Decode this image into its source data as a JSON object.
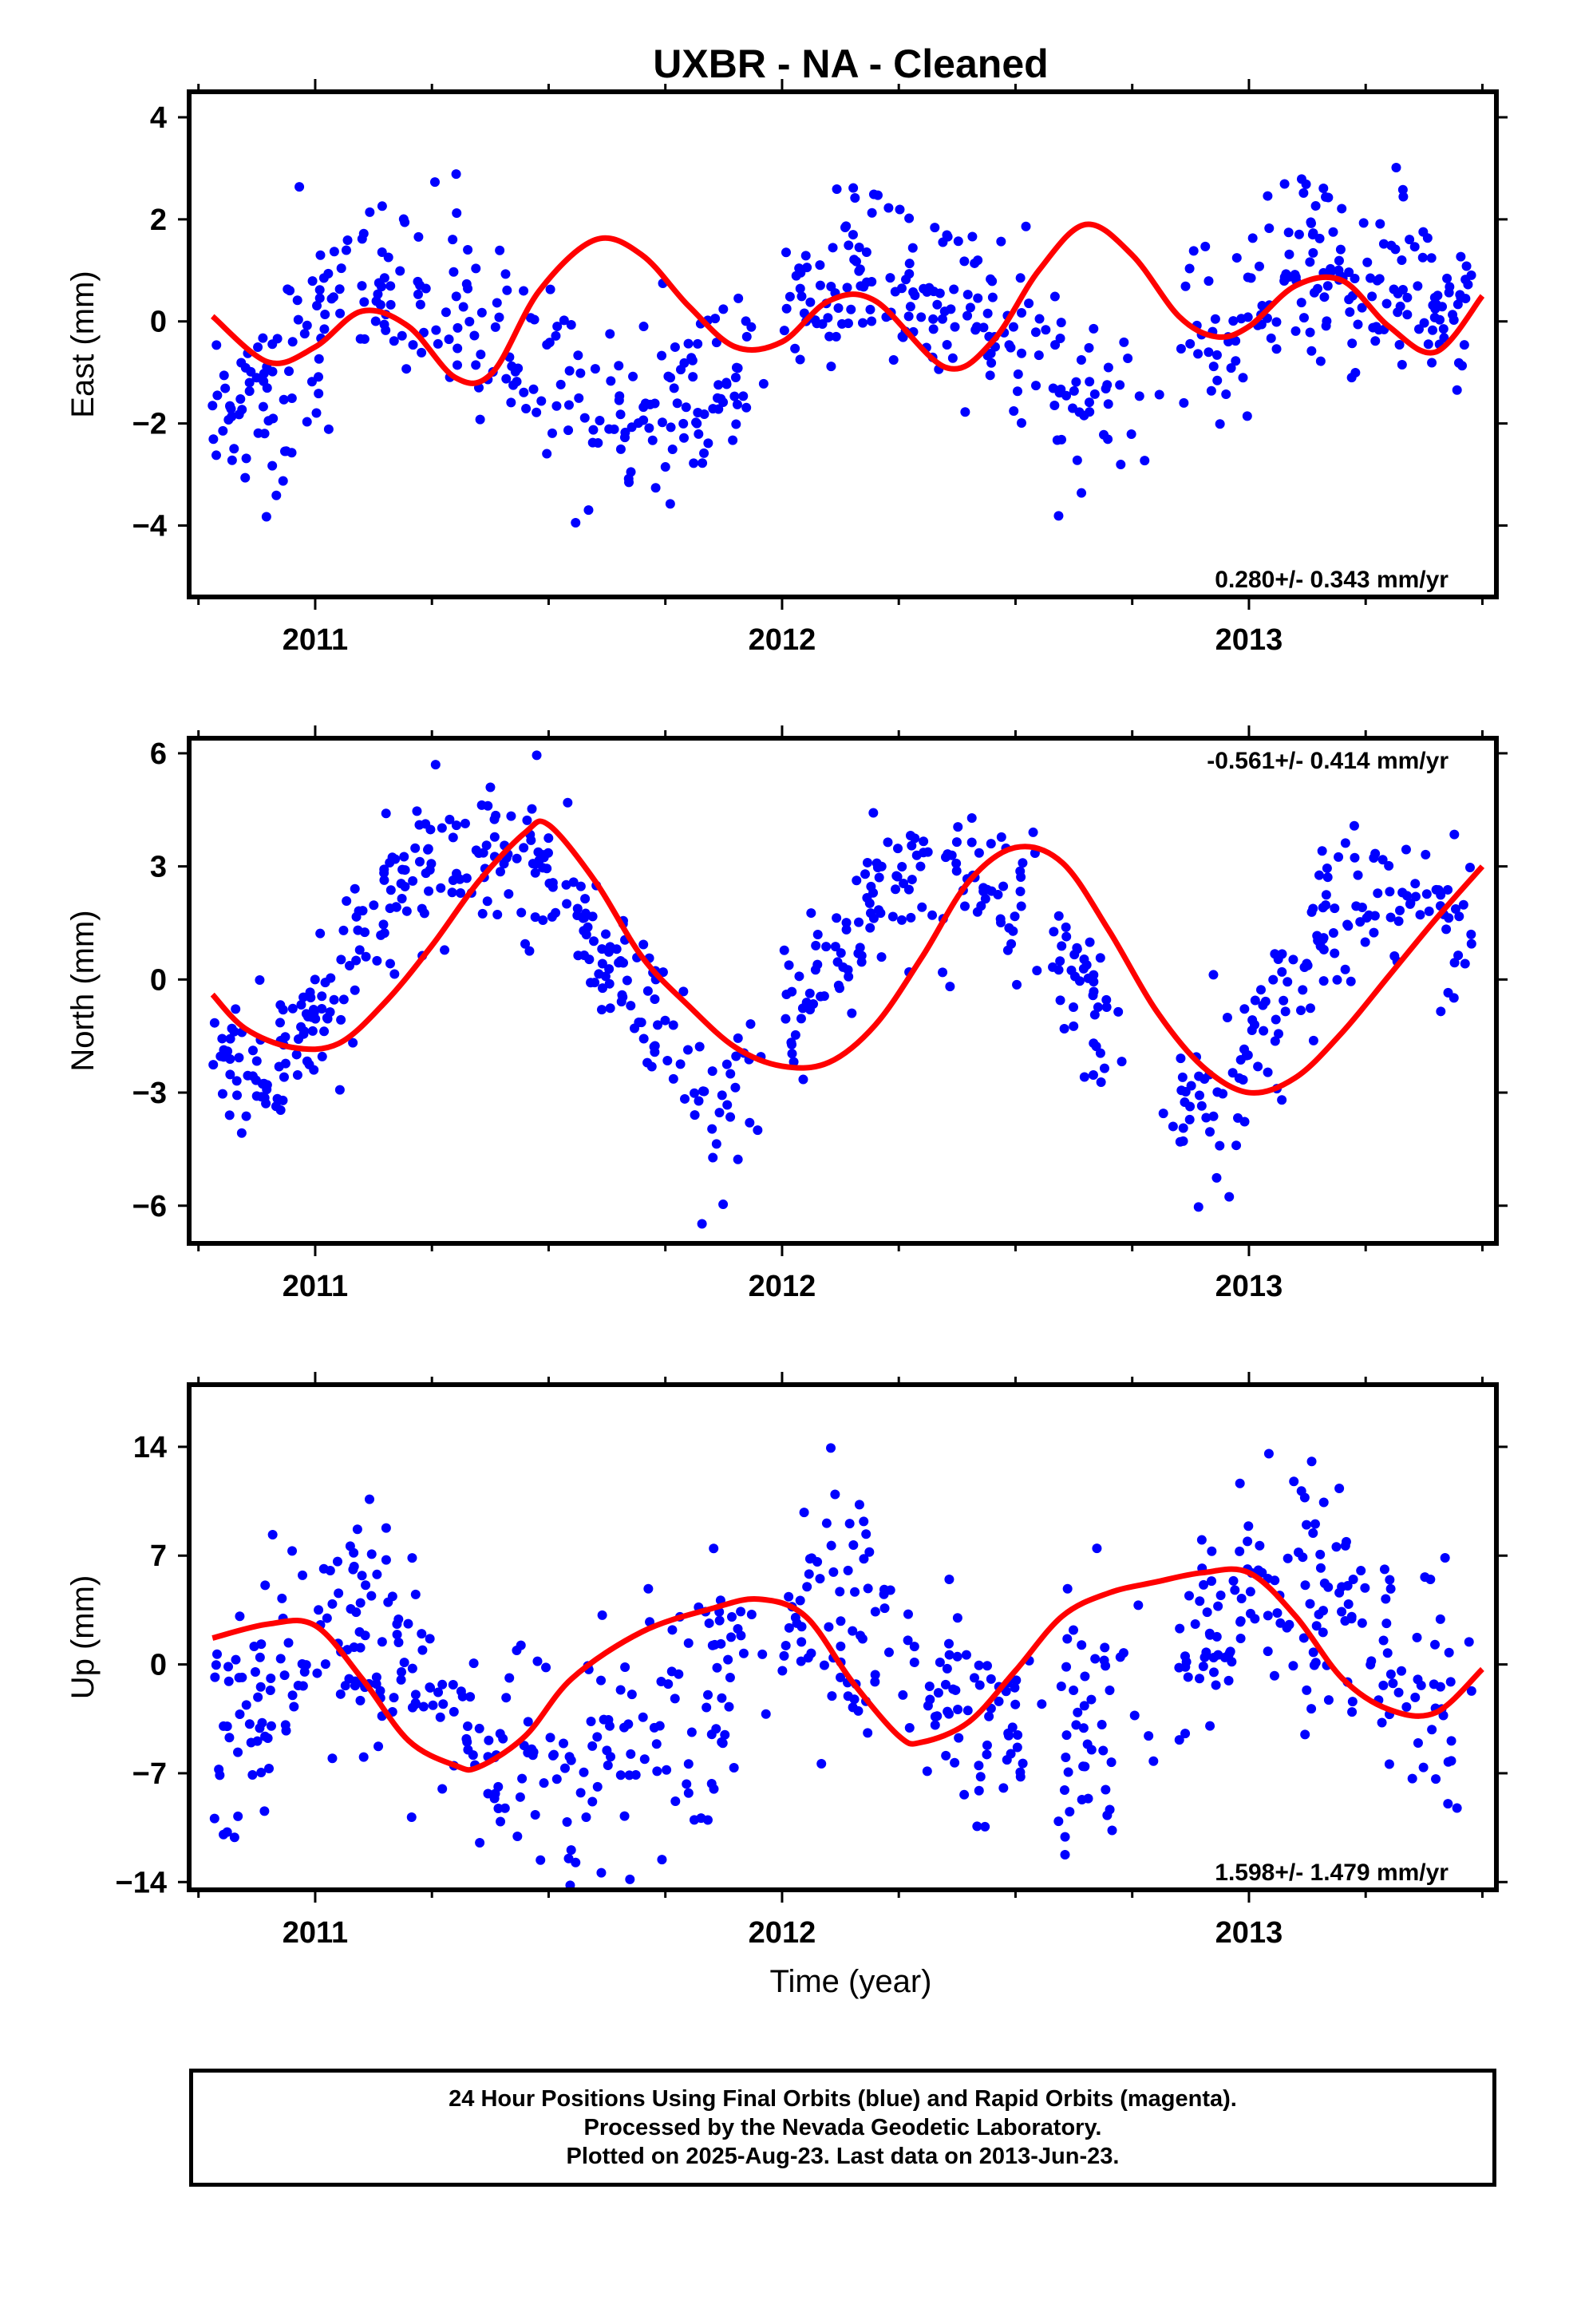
{
  "chart_data": [
    {
      "type": "scatter",
      "title": "UXBR  - NA - Cleaned",
      "ylabel": "East (mm)",
      "xlabel": "",
      "xlim": [
        2010.73,
        2013.53
      ],
      "ylim": [
        -5.4,
        4.5
      ],
      "yticks": [
        4,
        2,
        0,
        -2,
        -4
      ],
      "ytick_labels": [
        "4",
        "2",
        "0",
        "−2",
        "−4"
      ],
      "xticks": [
        2011,
        2012,
        2013
      ],
      "xtick_labels": [
        "2011",
        "2012",
        "2013"
      ],
      "rate_text": "0.280+/- 0.343 mm/yr",
      "rate_position": "bottom-right",
      "series": [
        {
          "color": "#0000ff",
          "marker": "dot",
          "mean_model": {
            "offset": -0.35,
            "rate": 0.28,
            "t0": 2012.13,
            "components": [
              [
                1.3,
                1.0,
                1.3
              ],
              [
                0.05,
                2.0,
                0.8
              ],
              [
                0.25,
                3.0,
                1.6
              ]
            ]
          },
          "noise": 0.95,
          "samples": 700,
          "seed": 11
        },
        {
          "color": "#ff0000",
          "type": "line",
          "x": [
            2010.78,
            2010.9,
            2011.0,
            2011.1,
            2011.2,
            2011.3,
            2011.38,
            2011.48,
            2011.6,
            2011.7,
            2011.8,
            2011.9,
            2012.0,
            2012.1,
            2012.2,
            2012.35,
            2012.45,
            2012.55,
            2012.65,
            2012.75,
            2012.85,
            2012.93,
            2013.0,
            2013.1,
            2013.2,
            2013.3,
            2013.4,
            2013.5
          ],
          "values": [
            0.1,
            -0.8,
            -0.5,
            0.2,
            -0.1,
            -1.1,
            -1.0,
            0.6,
            1.6,
            1.3,
            0.3,
            -0.5,
            -0.4,
            0.4,
            0.4,
            -0.9,
            -0.4,
            1.0,
            1.9,
            1.3,
            0.1,
            -0.3,
            -0.1,
            0.7,
            0.8,
            -0.1,
            -0.6,
            0.5
          ]
        }
      ]
    },
    {
      "type": "scatter",
      "ylabel": "North (mm)",
      "xlabel": "",
      "xlim": [
        2010.73,
        2013.53
      ],
      "ylim": [
        -7.0,
        6.4
      ],
      "yticks": [
        6,
        3,
        0,
        -3,
        -6
      ],
      "ytick_labels": [
        "6",
        "3",
        "0",
        "−3",
        "−6"
      ],
      "xticks": [
        2011,
        2012,
        2013
      ],
      "xtick_labels": [
        "2011",
        "2012",
        "2013"
      ],
      "rate_text": "-0.561+/- 0.414 mm/yr",
      "rate_position": "top-right",
      "series": [
        {
          "color": "#0000ff",
          "marker": "dot",
          "mean_model": {
            "offset": 0.3,
            "rate": -0.561,
            "t0": 2012.13,
            "components": [
              [
                -3.0,
                1.0,
                -0.85
              ],
              [
                0.45,
                2.0,
                1.5
              ]
            ]
          },
          "noise": 1.0,
          "samples": 700,
          "seed": 23
        },
        {
          "color": "#ff0000",
          "type": "line",
          "x": [
            2010.78,
            2010.85,
            2010.95,
            2011.05,
            2011.15,
            2011.25,
            2011.35,
            2011.45,
            2011.5,
            2011.6,
            2011.7,
            2011.8,
            2011.9,
            2012.0,
            2012.1,
            2012.2,
            2012.3,
            2012.4,
            2012.5,
            2012.6,
            2012.7,
            2012.8,
            2012.9,
            2013.0,
            2013.1,
            2013.2,
            2013.3,
            2013.4,
            2013.5
          ],
          "values": [
            -0.4,
            -1.3,
            -1.8,
            -1.7,
            -0.6,
            0.9,
            2.6,
            3.9,
            4.1,
            2.6,
            0.6,
            -0.7,
            -1.8,
            -2.3,
            -2.2,
            -1.2,
            0.6,
            2.6,
            3.5,
            3.1,
            1.3,
            -0.8,
            -2.3,
            -3.0,
            -2.6,
            -1.4,
            0.1,
            1.6,
            3.0
          ]
        }
      ]
    },
    {
      "type": "scatter",
      "ylabel": "Up (mm)",
      "xlabel": "Time (year)",
      "xlim": [
        2010.73,
        2013.53
      ],
      "ylim": [
        -14.5,
        18.0
      ],
      "yticks": [
        14,
        7,
        0,
        -7,
        -14
      ],
      "ytick_labels": [
        "14",
        "7",
        "0",
        "−7",
        "−14"
      ],
      "xticks": [
        2011,
        2012,
        2013
      ],
      "xtick_labels": [
        "2011",
        "2012",
        "2013"
      ],
      "rate_text": "1.598+/- 1.479 mm/yr",
      "rate_position": "bottom-right",
      "series": [
        {
          "color": "#0000ff",
          "marker": "dot",
          "mean_model": {
            "offset": -1.2,
            "rate": 1.598,
            "t0": 2012.13,
            "components": [
              [
                4.6,
                1.0,
                0.4
              ],
              [
                0.6,
                2.0,
                1.0
              ]
            ]
          },
          "noise": 4.0,
          "samples": 680,
          "seed": 37
        },
        {
          "color": "#ff0000",
          "type": "line",
          "x": [
            2010.78,
            2010.9,
            2011.0,
            2011.1,
            2011.2,
            2011.3,
            2011.35,
            2011.45,
            2011.55,
            2011.7,
            2011.85,
            2011.95,
            2012.05,
            2012.15,
            2012.25,
            2012.3,
            2012.4,
            2012.5,
            2012.6,
            2012.7,
            2012.8,
            2012.9,
            2013.0,
            2013.1,
            2013.2,
            2013.3,
            2013.4,
            2013.5
          ],
          "values": [
            1.7,
            2.6,
            2.5,
            -0.9,
            -4.9,
            -6.5,
            -6.6,
            -4.6,
            -0.9,
            2.1,
            3.6,
            4.2,
            3.1,
            -1.1,
            -4.6,
            -5.0,
            -3.7,
            -0.4,
            3.1,
            4.6,
            5.3,
            5.9,
            5.9,
            3.1,
            -0.9,
            -2.9,
            -3.1,
            -0.3
          ]
        }
      ]
    }
  ],
  "footer": {
    "line1": "24 Hour Positions Using Final Orbits (blue) and Rapid Orbits (magenta).",
    "line2": "Processed by the Nevada Geodetic Laboratory.",
    "line3": "Plotted on 2025-Aug-23. Last data on 2013-Jun-23."
  }
}
